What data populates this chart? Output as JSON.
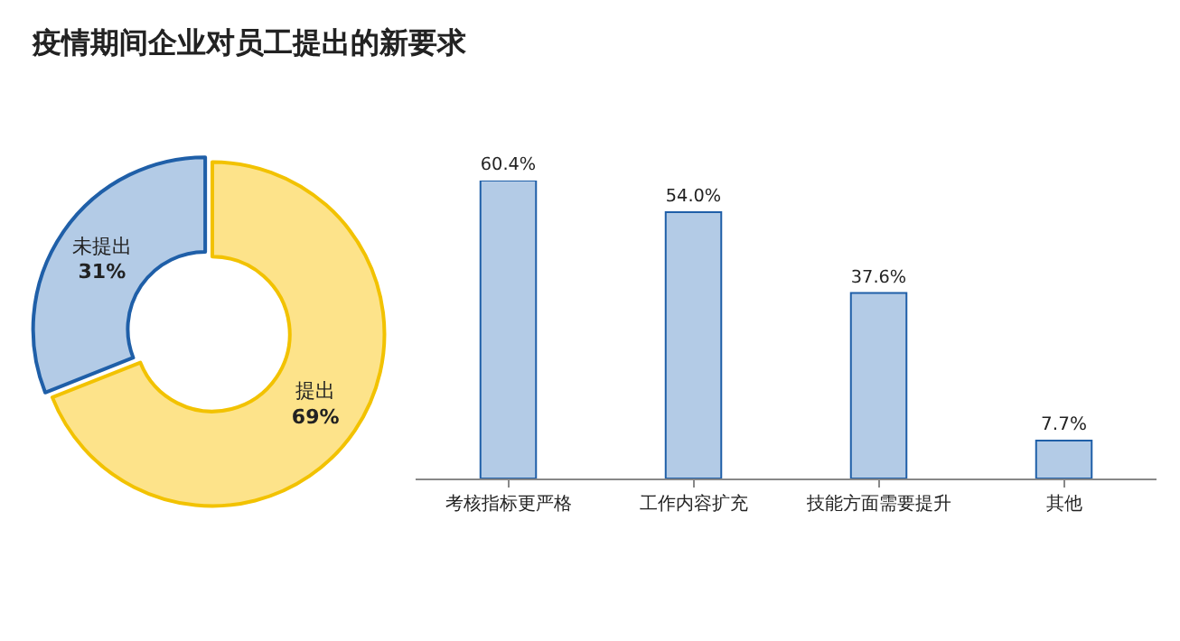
{
  "chart_data": [
    {
      "type": "donut",
      "title": "疫情期间企业对员工提出的新要求",
      "categories": [
        "提出",
        "未提出"
      ],
      "values": [
        69,
        31
      ],
      "colors": [
        "#fde38a",
        "#b3cbe6"
      ],
      "value_labels": [
        "69%",
        "31%"
      ]
    },
    {
      "type": "bar",
      "categories": [
        "考核指标更严格",
        "工作内容扩充",
        "技能方面需要提升",
        "其他"
      ],
      "values": [
        60.4,
        54.0,
        37.6,
        7.7
      ],
      "color": "#b3cbe6",
      "value_labels": [
        "60.4%",
        "54.0%",
        "37.6%",
        "7.7%"
      ]
    }
  ]
}
